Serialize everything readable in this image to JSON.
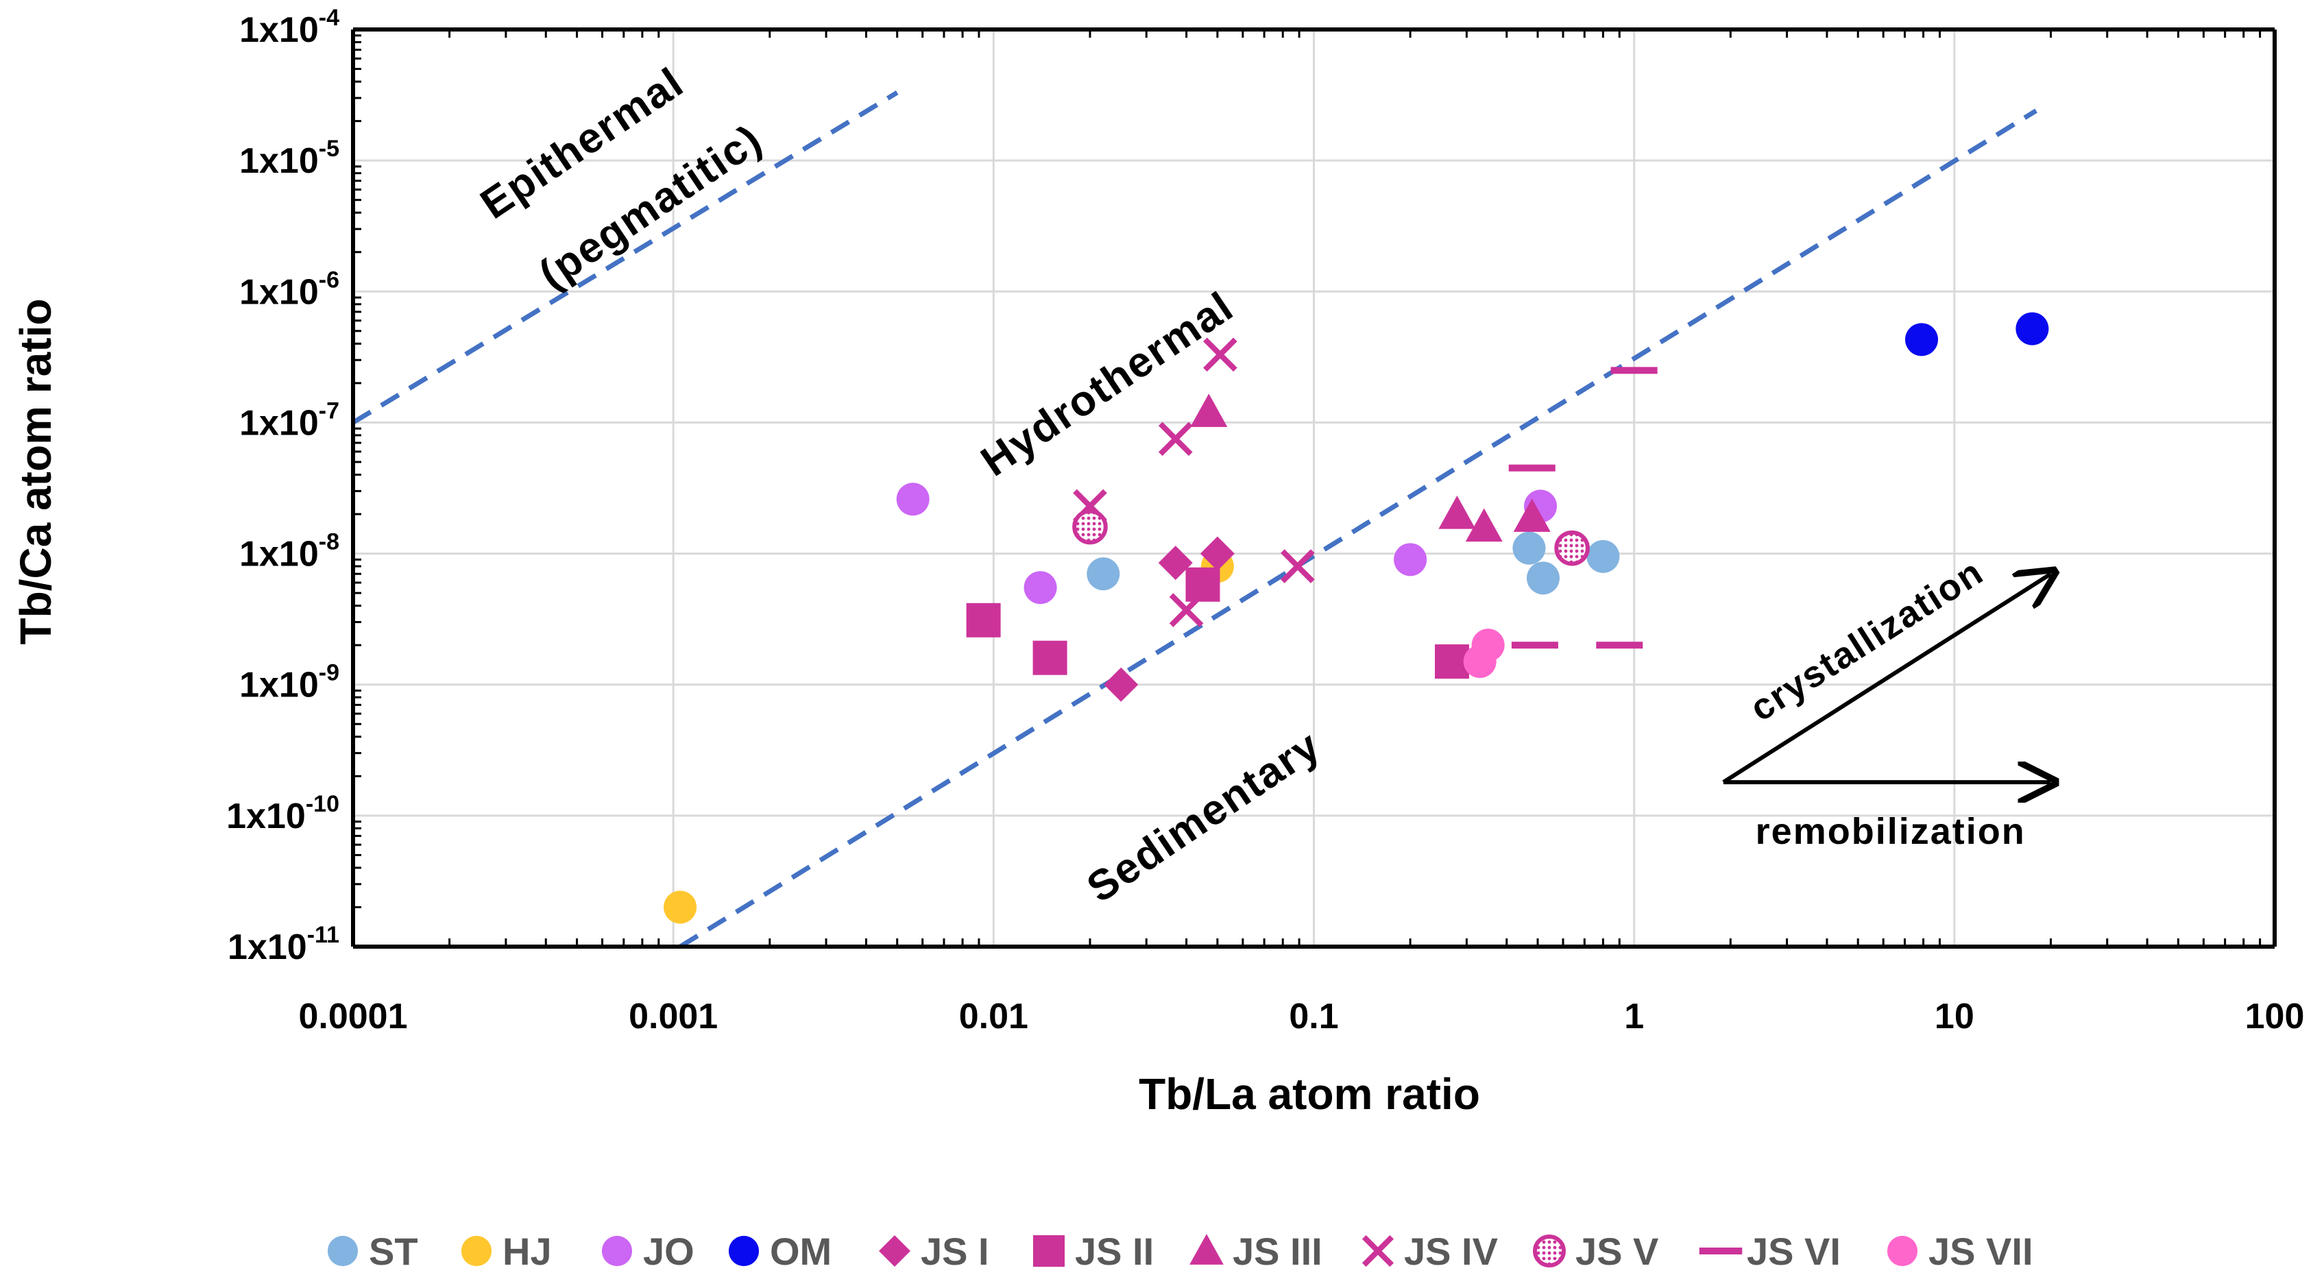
{
  "chart_data": {
    "type": "scatter",
    "x_scale": "log",
    "y_scale": "log",
    "xlabel": "Tb/La atom ratio",
    "ylabel": "Tb/Ca atom ratio",
    "xlim": [
      0.0001,
      100
    ],
    "ylim": [
      1e-11,
      0.0001
    ],
    "x_ticks": [
      {
        "value": 0.0001,
        "label": "0.0001"
      },
      {
        "value": 0.001,
        "label": "0.001"
      },
      {
        "value": 0.01,
        "label": "0.01"
      },
      {
        "value": 0.1,
        "label": "0.1"
      },
      {
        "value": 1,
        "label": "1"
      },
      {
        "value": 10,
        "label": "10"
      },
      {
        "value": 100,
        "label": "100"
      }
    ],
    "y_ticks": [
      {
        "value": 0.0001,
        "base": "1x10",
        "exp": "-4"
      },
      {
        "value": 1e-05,
        "base": "1x10",
        "exp": "-5"
      },
      {
        "value": 1e-06,
        "base": "1x10",
        "exp": "-6"
      },
      {
        "value": 1e-07,
        "base": "1x10",
        "exp": "-7"
      },
      {
        "value": 1e-08,
        "base": "1x10",
        "exp": "-8"
      },
      {
        "value": 1e-09,
        "base": "1x10",
        "exp": "-9"
      },
      {
        "value": 1e-10,
        "base": "1x10",
        "exp": "-10"
      },
      {
        "value": 1e-11,
        "base": "1x10",
        "exp": "-11"
      }
    ],
    "grid": true,
    "boundary_lines": [
      {
        "name": "epithermal-hydrothermal-boundary",
        "color": "#4472C4",
        "style": "dashed",
        "points": [
          [
            0.0001,
            1e-07
          ],
          [
            0.005,
            3.3e-05
          ]
        ]
      },
      {
        "name": "hydrothermal-sedimentary-boundary",
        "color": "#4472C4",
        "style": "dashed",
        "points": [
          [
            0.00105,
            1e-11
          ],
          [
            18,
            2.4e-05
          ]
        ]
      }
    ],
    "region_labels": [
      {
        "text": "Epithermal",
        "at": [
          0.00055,
          1.1e-05
        ],
        "angle": -34
      },
      {
        "text": "(pegmatitic)",
        "at": [
          0.0009,
          3.6e-06
        ],
        "angle": -34
      },
      {
        "text": "Hydrothermal",
        "at": [
          0.024,
          1.6e-07
        ],
        "angle": -34
      },
      {
        "text": "Sedimentary",
        "at": [
          0.048,
          8e-11
        ],
        "angle": -34
      }
    ],
    "arrows": [
      {
        "label": "crystallization",
        "from": [
          1.9,
          1.8e-10
        ],
        "to": [
          20,
          7e-09
        ]
      },
      {
        "label": "remobilization",
        "from": [
          1.9,
          1.8e-10
        ],
        "to": [
          20,
          1.8e-10
        ]
      }
    ],
    "series": [
      {
        "name": "ST",
        "marker": "circle",
        "color": "#83B3E0",
        "points": [
          [
            0.022,
            7e-09
          ],
          [
            0.47,
            1.1e-08
          ],
          [
            0.52,
            6.5e-09
          ],
          [
            0.8,
            9.5e-09
          ]
        ]
      },
      {
        "name": "HJ",
        "marker": "circle",
        "color": "#FFC62E",
        "points": [
          [
            0.00105,
            2e-11
          ],
          [
            0.05,
            8e-09
          ]
        ]
      },
      {
        "name": "JO",
        "marker": "circle",
        "color": "#CC66F5",
        "points": [
          [
            0.0056,
            2.6e-08
          ],
          [
            0.014,
            5.5e-09
          ],
          [
            0.2,
            9e-09
          ],
          [
            0.51,
            2.3e-08
          ]
        ]
      },
      {
        "name": "OM",
        "marker": "circle",
        "color": "#0A0AF0",
        "points": [
          [
            7.9,
            4.3e-07
          ],
          [
            17.5,
            5.2e-07
          ]
        ]
      },
      {
        "name": "JS I",
        "marker": "diamond",
        "color": "#CC3399",
        "points": [
          [
            0.025,
            1e-09
          ],
          [
            0.037,
            8.5e-09
          ],
          [
            0.05,
            1e-08
          ]
        ]
      },
      {
        "name": "JS II",
        "marker": "square",
        "color": "#CC3399",
        "points": [
          [
            0.0093,
            3.1e-09
          ],
          [
            0.015,
            1.6e-09
          ],
          [
            0.045,
            5.8e-09
          ],
          [
            0.27,
            1.5e-09
          ]
        ]
      },
      {
        "name": "JS III",
        "marker": "triangle",
        "color": "#CC3399",
        "points": [
          [
            0.047,
            1.2e-07
          ],
          [
            0.28,
            2e-08
          ],
          [
            0.34,
            1.6e-08
          ],
          [
            0.48,
            1.9e-08
          ]
        ]
      },
      {
        "name": "JS IV",
        "marker": "x",
        "color": "#CC3399",
        "points": [
          [
            0.02,
            2.3e-08
          ],
          [
            0.037,
            7.5e-08
          ],
          [
            0.04,
            3.7e-09
          ],
          [
            0.051,
            3.3e-07
          ],
          [
            0.089,
            8e-09
          ]
        ]
      },
      {
        "name": "JS V",
        "marker": "patterned-circle",
        "color": "#CC3399",
        "points": [
          [
            0.02,
            1.6e-08
          ],
          [
            0.64,
            1.1e-08
          ]
        ]
      },
      {
        "name": "JS VI",
        "marker": "dash",
        "color": "#CC3399",
        "points": [
          [
            0.48,
            4.5e-08
          ],
          [
            0.49,
            2e-09
          ],
          [
            0.9,
            2e-09
          ],
          [
            1.0,
            2.5e-07
          ]
        ]
      },
      {
        "name": "JS VII",
        "marker": "circle",
        "color": "#FF66CC",
        "points": [
          [
            0.33,
            1.5e-09
          ],
          [
            0.35,
            2e-09
          ]
        ]
      }
    ]
  }
}
